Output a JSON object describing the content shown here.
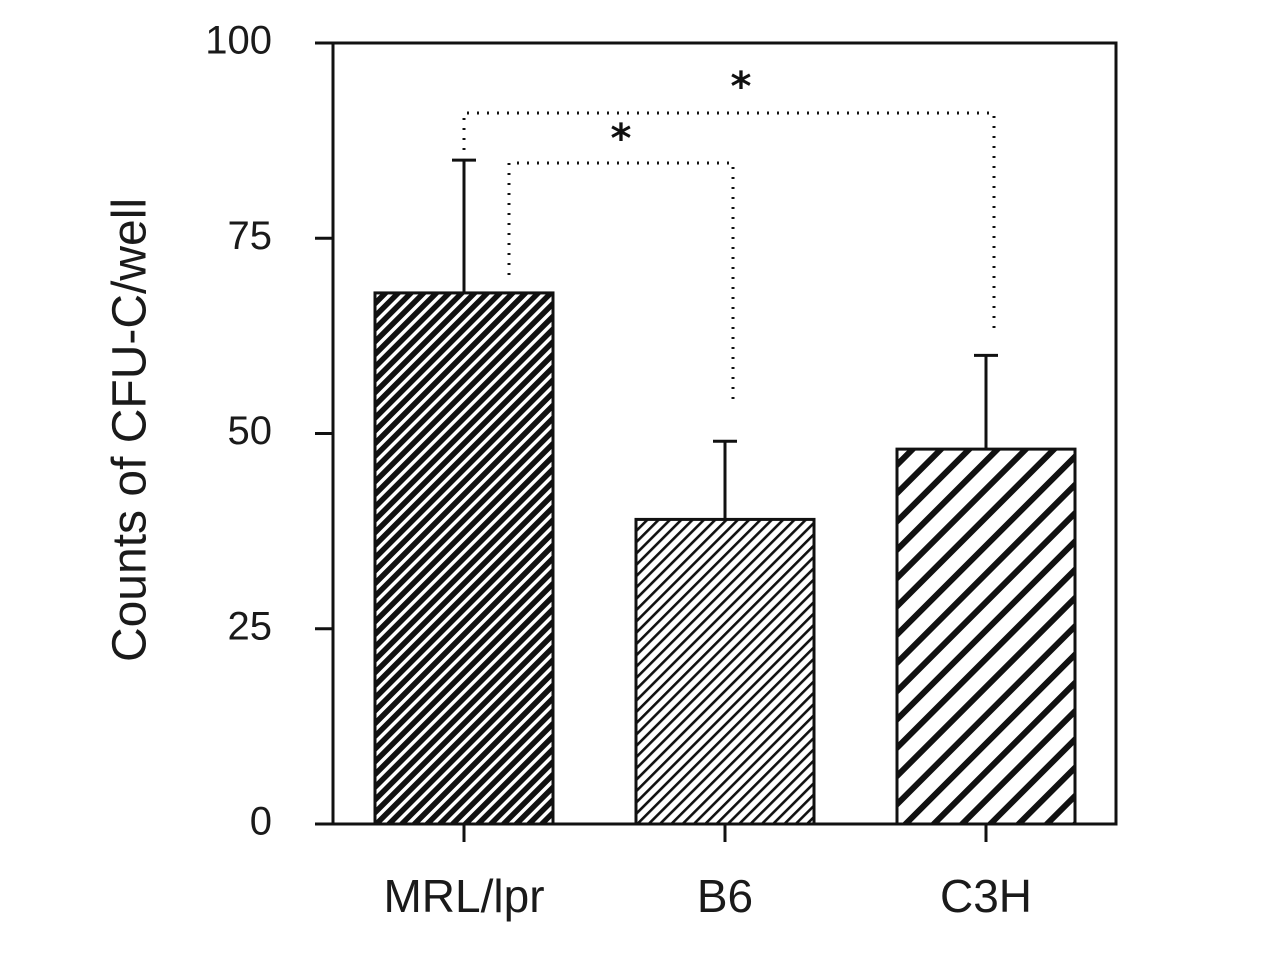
{
  "chart_data": {
    "type": "bar",
    "title": "",
    "xlabel": "",
    "ylabel": "Counts of CFU-C/well",
    "ylim": [
      0,
      100
    ],
    "yticks": [
      0,
      25,
      50,
      75,
      100
    ],
    "ytick_labels": [
      "0",
      "25",
      "50",
      "75",
      "100"
    ],
    "categories": [
      "MRL/lpr",
      "B6",
      "C3H"
    ],
    "values": [
      68,
      39,
      48
    ],
    "error_upper": [
      85,
      49,
      60
    ],
    "bar_patterns": [
      "dense-diagonal-hatch",
      "fine-diagonal-hatch",
      "wide-diagonal-hatch"
    ],
    "grid": false,
    "significance": [
      {
        "from": "MRL/lpr",
        "to": "B6",
        "label": "*"
      },
      {
        "from": "MRL/lpr",
        "to": "C3H",
        "label": "*"
      }
    ],
    "colors": {
      "ink": "#111111",
      "background": "#ffffff"
    }
  }
}
